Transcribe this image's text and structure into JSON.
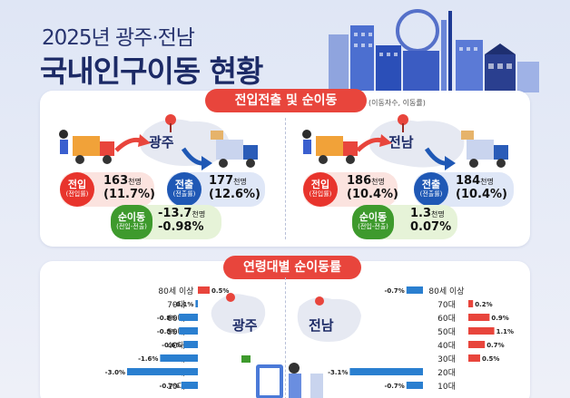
{
  "header": {
    "subtitle": "2025년 광주·전남",
    "title": "국내인구이동 현황"
  },
  "section1": {
    "title": "전입전출 및 순이동",
    "unit_note": "(이동자수, 이동률)",
    "regions": [
      {
        "name": "광주",
        "in_label": "전입",
        "in_sub": "(전입률)",
        "in_value": "163",
        "in_unit": "천명",
        "in_rate": "(11.7%)",
        "out_label": "전출",
        "out_sub": "(전출률)",
        "out_value": "177",
        "out_unit": "천명",
        "out_rate": "(12.6%)",
        "net_label": "순이동",
        "net_sub": "(전입-전출)",
        "net_value": "-13.7",
        "net_unit": "천명",
        "net_rate": "-0.98%"
      },
      {
        "name": "전남",
        "in_label": "전입",
        "in_sub": "(전입률)",
        "in_value": "186",
        "in_unit": "천명",
        "in_rate": "(10.4%)",
        "out_label": "전출",
        "out_sub": "(전출률)",
        "out_value": "184",
        "out_unit": "천명",
        "out_rate": "(10.4%)",
        "net_label": "순이동",
        "net_sub": "(전입-전출)",
        "net_value": "1.3",
        "net_unit": "천명",
        "net_rate": "0.07%"
      }
    ]
  },
  "section2": {
    "title": "연령대별 순이동률",
    "map_labels": [
      "광주",
      "전남"
    ]
  },
  "chart_data": {
    "type": "bar",
    "title": "연령대별 순이동률",
    "categories": [
      "80세 이상",
      "70대",
      "60대",
      "50대",
      "40대",
      "30대",
      "20대",
      "10대"
    ],
    "series": [
      {
        "name": "광주",
        "values": [
          0.5,
          -0.1,
          -0.8,
          -0.8,
          -0.6,
          -1.6,
          -3.0,
          -0.7
        ],
        "labels": [
          "0.5",
          "-0.1",
          "-0.8",
          "-0.8",
          "-0.6",
          "-1.6",
          "-3.0",
          "-0.7"
        ]
      },
      {
        "name": "전남",
        "values": [
          -0.7,
          0.2,
          0.9,
          1.1,
          0.7,
          0.5,
          -3.1,
          -0.7
        ],
        "labels": [
          "-0.7",
          "0.2",
          "0.9",
          "1.1",
          "0.7",
          "0.5",
          "-3.1",
          "-0.7"
        ]
      }
    ],
    "value_unit": "%"
  },
  "colors": {
    "in": "#e8342c",
    "out": "#1f58b5",
    "net": "#3e9a2d",
    "bar_negative": "#2a7fd0",
    "bar_positive": "#e8453c"
  }
}
